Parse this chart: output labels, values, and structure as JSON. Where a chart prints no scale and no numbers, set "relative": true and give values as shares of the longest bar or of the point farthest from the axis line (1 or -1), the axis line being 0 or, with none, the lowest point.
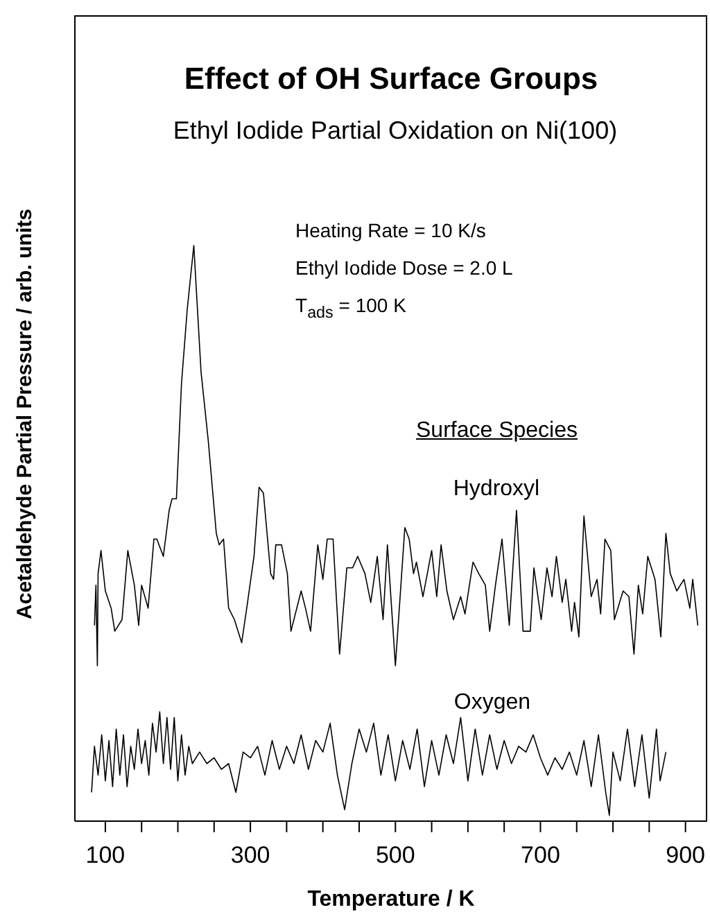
{
  "chart_data": {
    "type": "line",
    "title": "Effect of OH Surface Groups",
    "subtitle": "Ethyl Iodide Partial Oxidation on Ni(100)",
    "xlabel": "Temperature / K",
    "ylabel": "Acetaldehyde Partial Pressure / arb. units",
    "legend_title": "Surface Species",
    "relative": true,
    "annotations": [
      "Heating Rate = 10 K/s",
      "Ethyl Iodide Dose = 2.0 L",
      "T$_{ads}$ = 100 K"
    ],
    "xlim": [
      58,
      930
    ],
    "xticks": [
      100,
      {
        "value": 150,
        "label": null
      },
      {
        "value": 200,
        "label": null
      },
      {
        "value": 250,
        "label": null
      },
      300,
      {
        "value": 350,
        "label": null
      },
      {
        "value": 400,
        "label": null
      },
      {
        "value": 450,
        "label": null
      },
      500,
      {
        "value": 550,
        "label": null
      },
      {
        "value": 600,
        "label": null
      },
      {
        "value": 650,
        "label": null
      },
      700,
      {
        "value": 750,
        "label": null
      },
      {
        "value": 800,
        "label": null
      },
      {
        "value": 850,
        "label": null
      },
      900
    ],
    "series": [
      {
        "name": "Hydroxyl",
        "color": "#000000",
        "x": [
          85,
          87,
          89,
          90,
          94,
          100,
          108,
          113,
          123,
          131,
          140,
          146,
          150,
          159,
          167,
          171,
          180,
          188,
          192,
          198,
          205,
          213,
          222,
          232,
          242,
          253,
          257,
          263,
          270,
          278,
          288,
          295,
          305,
          312,
          318,
          328,
          332,
          335,
          343,
          351,
          356,
          370,
          376,
          383,
          393,
          400,
          406,
          414,
          423,
          433,
          441,
          448,
          458,
          466,
          475,
          483,
          489,
          500,
          513,
          519,
          525,
          529,
          538,
          550,
          557,
          563,
          571,
          580,
          590,
          596,
          607,
          615,
          624,
          630,
          638,
          647,
          657,
          667,
          676,
          686,
          691,
          701,
          709,
          716,
          722,
          730,
          735,
          743,
          747,
          753,
          760,
          770,
          778,
          783,
          789,
          797,
          802,
          814,
          822,
          829,
          835,
          841,
          848,
          858,
          866,
          873,
          879,
          888,
          898,
          906,
          910,
          917
        ],
        "values": [
          0.34,
          0.41,
          0.27,
          0.43,
          0.47,
          0.4,
          0.37,
          0.33,
          0.35,
          0.47,
          0.41,
          0.34,
          0.41,
          0.37,
          0.49,
          0.49,
          0.46,
          0.54,
          0.56,
          0.56,
          0.76,
          0.89,
          1.0,
          0.78,
          0.66,
          0.5,
          0.48,
          0.49,
          0.37,
          0.35,
          0.31,
          0.37,
          0.46,
          0.58,
          0.57,
          0.43,
          0.42,
          0.48,
          0.48,
          0.43,
          0.33,
          0.4,
          0.37,
          0.33,
          0.48,
          0.42,
          0.49,
          0.49,
          0.29,
          0.44,
          0.44,
          0.46,
          0.43,
          0.38,
          0.46,
          0.35,
          0.48,
          0.27,
          0.51,
          0.49,
          0.43,
          0.45,
          0.39,
          0.47,
          0.39,
          0.48,
          0.4,
          0.35,
          0.39,
          0.36,
          0.45,
          0.43,
          0.41,
          0.33,
          0.41,
          0.49,
          0.34,
          0.54,
          0.33,
          0.33,
          0.44,
          0.35,
          0.44,
          0.39,
          0.46,
          0.38,
          0.42,
          0.33,
          0.38,
          0.32,
          0.53,
          0.39,
          0.42,
          0.36,
          0.49,
          0.47,
          0.35,
          0.4,
          0.39,
          0.29,
          0.41,
          0.36,
          0.46,
          0.42,
          0.32,
          0.5,
          0.43,
          0.4,
          0.42,
          0.37,
          0.42,
          0.34
        ]
      },
      {
        "name": "Oxygen",
        "color": "#000000",
        "x": [
          81,
          85,
          90,
          95,
          100,
          105,
          110,
          115,
          120,
          125,
          130,
          135,
          140,
          145,
          150,
          155,
          160,
          165,
          170,
          175,
          180,
          185,
          190,
          195,
          200,
          205,
          210,
          215,
          220,
          230,
          240,
          250,
          260,
          270,
          280,
          290,
          300,
          310,
          320,
          330,
          340,
          350,
          360,
          370,
          380,
          390,
          400,
          410,
          420,
          430,
          440,
          450,
          460,
          470,
          480,
          490,
          500,
          510,
          520,
          530,
          540,
          550,
          560,
          570,
          580,
          590,
          600,
          610,
          620,
          630,
          640,
          650,
          660,
          670,
          680,
          690,
          700,
          710,
          720,
          730,
          740,
          750,
          760,
          770,
          780,
          790,
          795,
          800,
          810,
          820,
          830,
          840,
          850,
          860,
          865,
          873
        ],
        "values": [
          0.05,
          0.13,
          0.08,
          0.15,
          0.07,
          0.14,
          0.06,
          0.16,
          0.08,
          0.15,
          0.06,
          0.13,
          0.09,
          0.16,
          0.1,
          0.14,
          0.08,
          0.17,
          0.12,
          0.19,
          0.1,
          0.18,
          0.09,
          0.18,
          0.07,
          0.15,
          0.08,
          0.13,
          0.1,
          0.12,
          0.1,
          0.11,
          0.09,
          0.1,
          0.05,
          0.12,
          0.11,
          0.13,
          0.08,
          0.14,
          0.09,
          0.13,
          0.1,
          0.15,
          0.09,
          0.14,
          0.12,
          0.17,
          0.08,
          0.02,
          0.1,
          0.16,
          0.12,
          0.17,
          0.08,
          0.15,
          0.07,
          0.14,
          0.09,
          0.16,
          0.06,
          0.14,
          0.08,
          0.15,
          0.1,
          0.18,
          0.07,
          0.16,
          0.08,
          0.15,
          0.09,
          0.14,
          0.1,
          0.13,
          0.12,
          0.15,
          0.11,
          0.08,
          0.11,
          0.09,
          0.12,
          0.08,
          0.14,
          0.06,
          0.15,
          0.05,
          0.01,
          0.12,
          0.07,
          0.16,
          0.06,
          0.15,
          0.04,
          0.16,
          0.07,
          0.12
        ]
      }
    ]
  }
}
